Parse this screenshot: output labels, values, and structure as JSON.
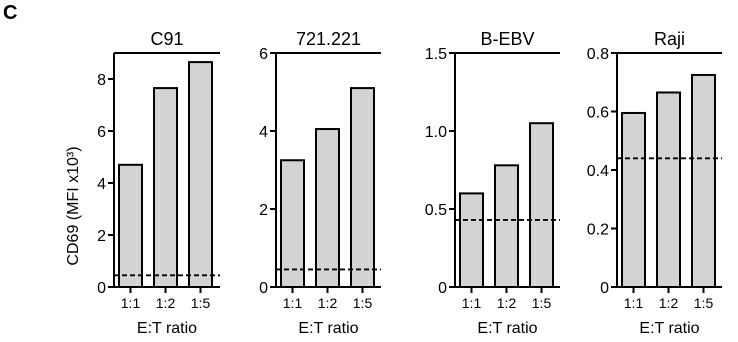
{
  "panel_label": "C",
  "shared_ylabel": "CD69 (MFI x10³)",
  "colors": {
    "bar_fill": "#d3d3d3",
    "bar_stroke": "#000000",
    "axis": "#000000",
    "baseline_dash": "#000000"
  },
  "chart_data": [
    {
      "type": "bar",
      "title": "C91",
      "categories": [
        "1:1",
        "1:2",
        "1:5"
      ],
      "values": [
        4.7,
        7.65,
        8.65
      ],
      "xlabel": "E:T ratio",
      "ylabel": "CD69 (MFI x10³)",
      "ylim": [
        0,
        9
      ],
      "yticks": [
        0,
        2,
        4,
        6,
        8
      ],
      "ytick_labels": [
        "0",
        "2",
        "4",
        "6",
        "8"
      ],
      "baseline": 0.45,
      "grid": false,
      "legend": "none"
    },
    {
      "type": "bar",
      "title": "721.221",
      "categories": [
        "1:1",
        "1:2",
        "1:5"
      ],
      "values": [
        3.25,
        4.05,
        5.1
      ],
      "xlabel": "E:T ratio",
      "ylabel": "",
      "ylim": [
        0,
        6
      ],
      "yticks": [
        0,
        2,
        4,
        6
      ],
      "ytick_labels": [
        "0",
        "2",
        "4",
        "6"
      ],
      "baseline": 0.45,
      "grid": false,
      "legend": "none"
    },
    {
      "type": "bar",
      "title": "B-EBV",
      "categories": [
        "1:1",
        "1:2",
        "1:5"
      ],
      "values": [
        0.6,
        0.78,
        1.05
      ],
      "xlabel": "E:T ratio",
      "ylabel": "",
      "ylim": [
        0,
        1.5
      ],
      "yticks": [
        0,
        0.5,
        1.0,
        1.5
      ],
      "ytick_labels": [
        "0",
        "0.5",
        "1.0",
        "1.5"
      ],
      "baseline": 0.43,
      "grid": false,
      "legend": "none"
    },
    {
      "type": "bar",
      "title": "Raji",
      "categories": [
        "1:1",
        "1:2",
        "1:5"
      ],
      "values": [
        0.595,
        0.665,
        0.725
      ],
      "xlabel": "E:T ratio",
      "ylabel": "",
      "ylim": [
        0,
        0.8
      ],
      "yticks": [
        0,
        0.2,
        0.4,
        0.6,
        0.8
      ],
      "ytick_labels": [
        "0",
        "0.2",
        "0.4",
        "0.6",
        "0.8"
      ],
      "baseline": 0.44,
      "grid": false,
      "legend": "none"
    }
  ]
}
